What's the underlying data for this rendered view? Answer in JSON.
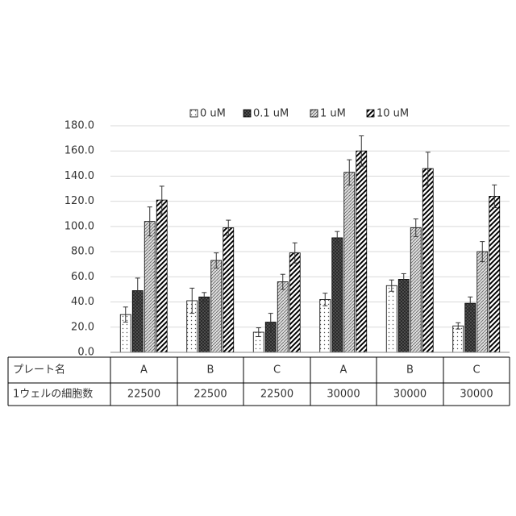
{
  "chart_data": {
    "type": "bar",
    "ylim": [
      0,
      180
    ],
    "yticks": [
      {
        "value": 0,
        "label": "0.0"
      },
      {
        "value": 20,
        "label": "20.0"
      },
      {
        "value": 40,
        "label": "40.0"
      },
      {
        "value": 60,
        "label": "60.0"
      },
      {
        "value": 80,
        "label": "80.0"
      },
      {
        "value": 100,
        "label": "100.0"
      },
      {
        "value": 120,
        "label": "120.0"
      },
      {
        "value": 140,
        "label": "140.0"
      },
      {
        "value": 160,
        "label": "160.0"
      },
      {
        "value": 180,
        "label": "180.0"
      }
    ],
    "grid": true,
    "legend": "top",
    "series": [
      {
        "name": "0 uM",
        "color": "#ffffff",
        "values": [
          30,
          41,
          16,
          42,
          53,
          21
        ],
        "errors": [
          6,
          10,
          3.5,
          5,
          4.5,
          2.5
        ]
      },
      {
        "name": "0.1 uM",
        "color": "#404040",
        "values": [
          49,
          44,
          24,
          91,
          58,
          39
        ],
        "errors": [
          10,
          3.5,
          7,
          5,
          4.5,
          5
        ]
      },
      {
        "name": "1 uM",
        "color": "#a0a0a0",
        "values": [
          104,
          73,
          56,
          143,
          99,
          80
        ],
        "errors": [
          11.5,
          6,
          6,
          10,
          7,
          8
        ]
      },
      {
        "name": "10 uM",
        "color": "#000000",
        "values": [
          121,
          99,
          79,
          160,
          146,
          124
        ],
        "errors": [
          11,
          6,
          8,
          12,
          13,
          9
        ]
      }
    ],
    "table": {
      "rows": [
        [
          "プレート名",
          "A",
          "B",
          "C",
          "A",
          "B",
          "C"
        ],
        [
          "1ウェルの細胞数",
          22500,
          22500,
          22500,
          30000,
          30000,
          30000
        ]
      ]
    }
  }
}
